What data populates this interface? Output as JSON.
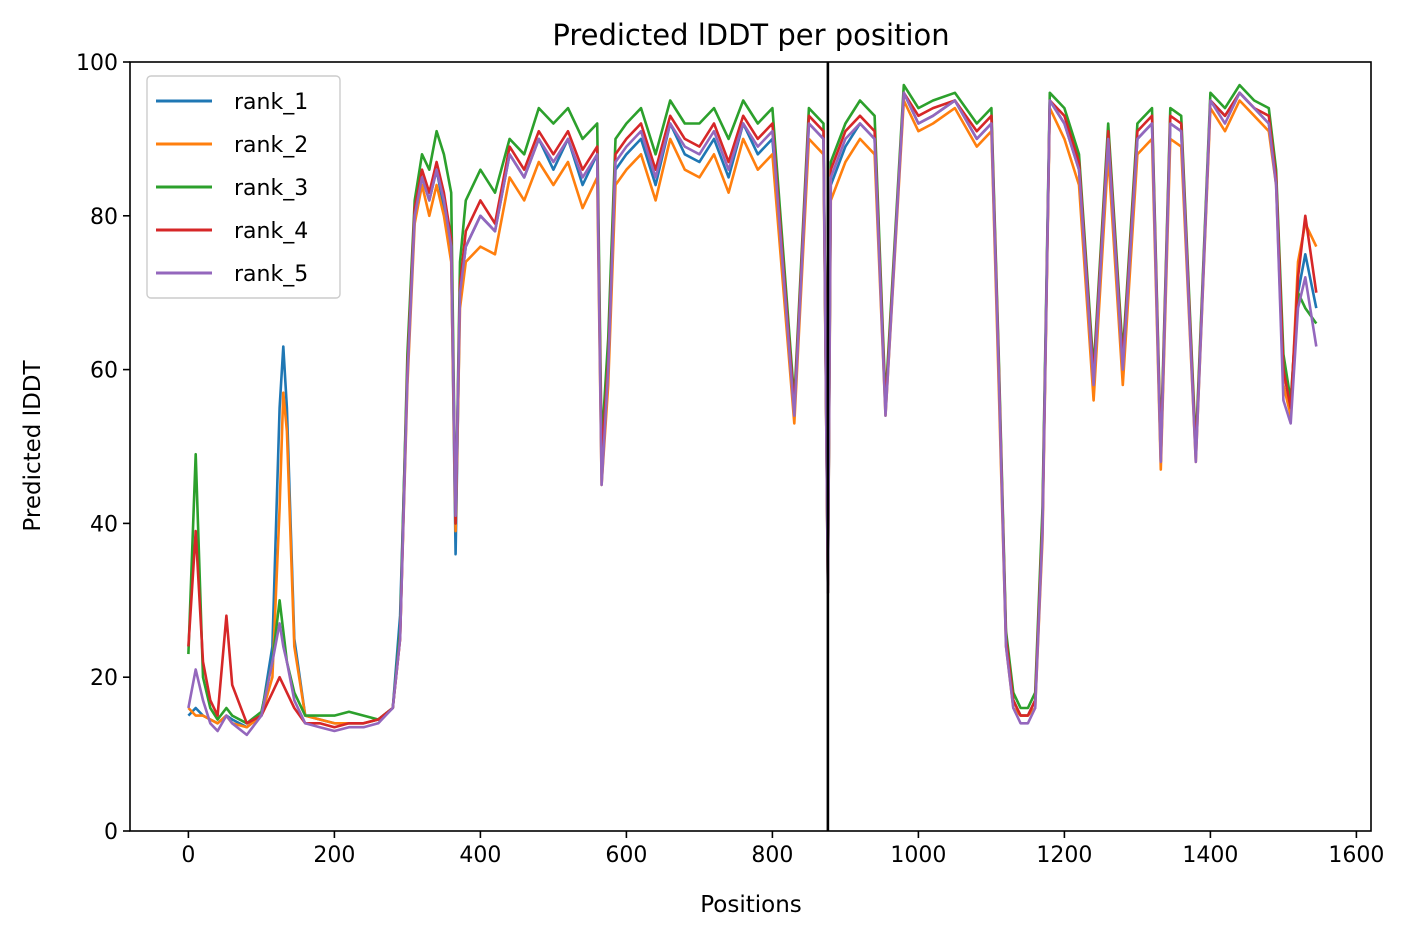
{
  "chart_data": {
    "type": "line",
    "title": "Predicted lDDT per position",
    "xlabel": "Positions",
    "ylabel": "Predicted lDDT",
    "xlim": [
      -80,
      1620
    ],
    "ylim": [
      0,
      100
    ],
    "xticks": [
      0,
      200,
      400,
      600,
      800,
      1000,
      1200,
      1400,
      1600
    ],
    "yticks": [
      0,
      20,
      40,
      60,
      80,
      100
    ],
    "grid": false,
    "legend_position": "upper-left",
    "vline_x": 876,
    "colors": {
      "rank_1": "#1f77b4",
      "rank_2": "#ff7f0e",
      "rank_3": "#2ca02c",
      "rank_4": "#d62728",
      "rank_5": "#9467bd",
      "vline": "#000000"
    },
    "x": [
      0,
      10,
      20,
      30,
      40,
      52,
      60,
      80,
      100,
      115,
      125,
      130,
      135,
      145,
      160,
      180,
      200,
      220,
      240,
      260,
      280,
      290,
      300,
      310,
      320,
      330,
      340,
      350,
      360,
      366,
      372,
      380,
      400,
      420,
      440,
      460,
      480,
      500,
      520,
      540,
      560,
      566,
      575,
      585,
      600,
      620,
      640,
      660,
      680,
      700,
      720,
      740,
      760,
      780,
      800,
      830,
      850,
      870,
      876,
      880,
      900,
      920,
      940,
      955,
      980,
      1000,
      1020,
      1050,
      1080,
      1100,
      1110,
      1120,
      1130,
      1140,
      1150,
      1160,
      1170,
      1180,
      1200,
      1220,
      1240,
      1260,
      1280,
      1300,
      1320,
      1332,
      1345,
      1360,
      1380,
      1400,
      1420,
      1440,
      1460,
      1480,
      1490,
      1500,
      1510,
      1520,
      1530,
      1545
    ],
    "series": [
      {
        "name": "rank_1",
        "values": [
          15,
          16,
          15,
          14.5,
          14,
          15,
          14.5,
          13.5,
          15,
          24,
          55,
          63,
          55,
          25,
          15,
          14.5,
          14,
          14,
          14,
          14.5,
          16,
          28,
          60,
          80,
          85,
          82,
          86,
          81,
          75,
          36,
          70,
          76,
          80,
          78,
          88,
          85,
          90,
          86,
          90,
          84,
          88,
          47,
          60,
          86,
          88,
          90,
          84,
          92,
          88,
          87,
          90,
          85,
          92,
          88,
          90,
          54,
          92,
          90,
          31,
          84,
          89,
          92,
          90,
          55,
          96,
          92,
          93,
          95,
          90,
          92,
          60,
          25,
          17,
          15,
          15,
          17,
          40,
          95,
          92,
          86,
          58,
          90,
          60,
          90,
          92,
          48,
          92,
          91,
          49,
          95,
          93,
          96,
          94,
          92,
          85,
          60,
          55,
          70,
          75,
          68
        ]
      },
      {
        "name": "rank_2",
        "values": [
          16,
          15,
          15,
          14.5,
          14,
          15,
          14,
          13.5,
          15,
          20,
          42,
          57,
          52,
          24,
          15,
          14.5,
          14,
          14,
          14,
          14.5,
          16,
          25,
          58,
          79,
          84,
          80,
          84,
          80,
          74,
          39,
          68,
          74,
          76,
          75,
          85,
          82,
          87,
          84,
          87,
          81,
          85,
          45,
          58,
          84,
          86,
          88,
          82,
          90,
          86,
          85,
          88,
          83,
          90,
          86,
          88,
          53,
          90,
          88,
          31,
          82,
          87,
          90,
          88,
          54,
          95,
          91,
          92,
          94,
          89,
          91,
          58,
          24,
          16,
          15,
          15,
          16,
          38,
          94,
          90,
          84,
          56,
          88,
          58,
          88,
          90,
          47,
          90,
          89,
          48,
          94,
          91,
          95,
          93,
          91,
          84,
          58,
          54,
          74,
          79,
          76
        ]
      },
      {
        "name": "rank_3",
        "values": [
          23,
          49,
          20,
          16,
          14.5,
          16,
          15,
          14,
          15.5,
          22,
          30,
          26,
          22,
          18,
          15,
          15,
          15,
          15.5,
          15,
          14.5,
          16,
          26,
          62,
          82,
          88,
          86,
          91,
          88,
          83,
          40,
          74,
          82,
          86,
          83,
          90,
          88,
          94,
          92,
          94,
          90,
          92,
          50,
          64,
          90,
          92,
          94,
          88,
          95,
          92,
          92,
          94,
          90,
          95,
          92,
          94,
          56,
          94,
          92,
          32,
          87,
          92,
          95,
          93,
          56,
          97,
          94,
          95,
          96,
          92,
          94,
          62,
          26,
          18,
          16,
          16,
          18,
          42,
          96,
          94,
          88,
          60,
          92,
          62,
          92,
          94,
          50,
          94,
          93,
          50,
          96,
          94,
          97,
          95,
          94,
          86,
          62,
          56,
          70,
          68,
          66
        ]
      },
      {
        "name": "rank_4",
        "values": [
          24,
          39,
          22,
          17,
          15,
          28,
          19,
          14,
          15,
          18,
          20,
          19,
          18,
          16,
          14,
          14,
          13.5,
          14,
          14,
          14.5,
          16,
          25,
          60,
          81,
          86,
          83,
          87,
          83,
          77,
          40,
          71,
          78,
          82,
          79,
          89,
          86,
          91,
          88,
          91,
          86,
          89,
          48,
          61,
          88,
          90,
          92,
          86,
          93,
          90,
          89,
          92,
          87,
          93,
          90,
          92,
          55,
          93,
          91,
          32,
          86,
          91,
          93,
          91,
          55,
          96,
          93,
          94,
          95,
          91,
          93,
          61,
          25,
          17,
          15,
          15,
          17,
          40,
          95,
          93,
          87,
          59,
          91,
          61,
          91,
          93,
          49,
          93,
          92,
          49,
          95,
          93,
          96,
          94,
          93,
          85,
          60,
          55,
          72,
          80,
          70
        ]
      },
      {
        "name": "rank_5",
        "values": [
          16,
          21,
          17,
          14,
          13,
          15,
          14,
          12.5,
          15,
          22,
          27,
          24,
          22,
          17,
          14,
          13.5,
          13,
          13.5,
          13.5,
          14,
          16,
          25,
          59,
          80,
          85,
          82,
          86,
          82,
          76,
          41,
          70,
          76,
          80,
          78,
          88,
          85,
          90,
          87,
          90,
          85,
          88,
          45,
          60,
          87,
          89,
          91,
          85,
          92,
          89,
          88,
          91,
          86,
          92,
          89,
          91,
          54,
          92,
          90,
          31,
          85,
          90,
          92,
          90,
          54,
          96,
          92,
          93,
          95,
          90,
          92,
          60,
          24,
          16,
          14,
          14,
          16,
          39,
          95,
          92,
          86,
          58,
          90,
          60,
          90,
          92,
          48,
          92,
          91,
          48,
          95,
          92,
          96,
          94,
          92,
          84,
          56,
          53,
          68,
          72,
          63
        ]
      }
    ]
  }
}
